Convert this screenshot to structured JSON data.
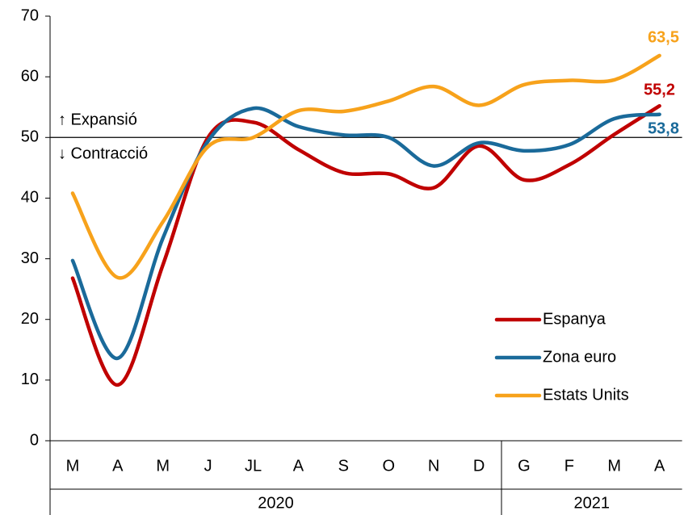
{
  "chart_data": {
    "type": "line",
    "categories": [
      "M",
      "A",
      "M",
      "J",
      "JL",
      "A",
      "S",
      "O",
      "N",
      "D",
      "G",
      "F",
      "M",
      "A"
    ],
    "groups": [
      {
        "label": "2020",
        "count": 10
      },
      {
        "label": "2021",
        "count": 4
      }
    ],
    "series": [
      {
        "name": "Espanya",
        "color": "#c00000",
        "values": [
          26.8,
          9.2,
          29,
          50,
          52.5,
          48,
          44.2,
          44,
          41.7,
          48.6,
          43,
          45.5,
          50.5,
          55.2
        ],
        "value_labels": [
          null,
          null,
          null,
          null,
          null,
          null,
          null,
          null,
          null,
          null,
          null,
          null,
          null,
          "55,2"
        ]
      },
      {
        "name": "Zona euro",
        "color": "#1a6a9a",
        "values": [
          29.7,
          13.6,
          33.4,
          49.4,
          54.8,
          51.8,
          50.4,
          50,
          45.3,
          49.1,
          47.8,
          48.8,
          53.1,
          53.8
        ],
        "value_labels": [
          null,
          null,
          null,
          null,
          null,
          null,
          null,
          null,
          null,
          null,
          null,
          null,
          null,
          "53,8"
        ]
      },
      {
        "name": "Estats Units",
        "color": "#f7a21b",
        "values": [
          40.8,
          26.9,
          36.1,
          48.5,
          50,
          54.4,
          54.3,
          56,
          58.4,
          55.3,
          58.7,
          59.4,
          59.5,
          63.5
        ],
        "value_labels": [
          null,
          null,
          null,
          null,
          null,
          null,
          null,
          null,
          null,
          null,
          null,
          null,
          null,
          "63,5"
        ]
      }
    ],
    "reference_line": 50,
    "annotations": [
      "↑ Expansió",
      "↓ Contracció"
    ],
    "ylim": [
      0,
      70
    ],
    "yticks": [
      0,
      10,
      20,
      30,
      40,
      50,
      60,
      70
    ],
    "grid": false,
    "legend": "lower right"
  }
}
